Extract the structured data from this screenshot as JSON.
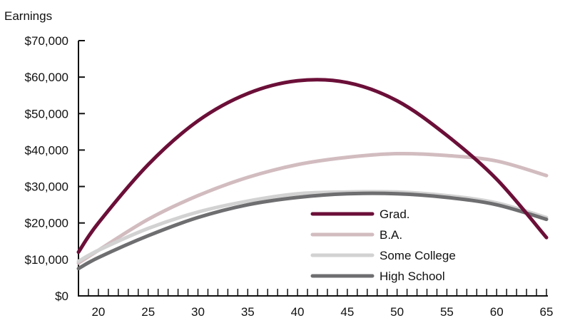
{
  "chart_data": {
    "type": "line",
    "title": "",
    "xlabel": "",
    "ylabel": "Earnings",
    "xlim": [
      18,
      65
    ],
    "ylim": [
      0,
      70000
    ],
    "x_ticks": [
      20,
      25,
      30,
      35,
      40,
      45,
      50,
      55,
      60,
      65
    ],
    "y_ticks": [
      0,
      10000,
      20000,
      30000,
      40000,
      50000,
      60000,
      70000
    ],
    "y_tick_labels": [
      "$0",
      "$10,000",
      "$20,000",
      "$30,000",
      "$40,000",
      "$50,000",
      "$60,000",
      "$70,000"
    ],
    "grid": false,
    "legend_position": "bottom-right",
    "x": [
      18,
      20,
      25,
      30,
      35,
      40,
      45,
      50,
      55,
      60,
      65
    ],
    "series": [
      {
        "name": "Grad.",
        "color": "#6b0f38",
        "values": [
          12000,
          20000,
          36000,
          48000,
          55500,
          59000,
          58500,
          53500,
          44000,
          32000,
          16000
        ]
      },
      {
        "name": "B.A.",
        "color": "#d2bcc0",
        "values": [
          9000,
          12500,
          21000,
          27500,
          32500,
          36000,
          38000,
          39000,
          38500,
          37000,
          33000
        ]
      },
      {
        "name": "Some College",
        "color": "#d2d2d2",
        "values": [
          9500,
          12500,
          18500,
          23000,
          26000,
          28000,
          28500,
          28500,
          27500,
          25500,
          21500
        ]
      },
      {
        "name": "High School",
        "color": "#6e6e71",
        "values": [
          7500,
          10500,
          16500,
          21500,
          25000,
          27000,
          28000,
          28000,
          27000,
          25000,
          21000
        ]
      }
    ]
  }
}
